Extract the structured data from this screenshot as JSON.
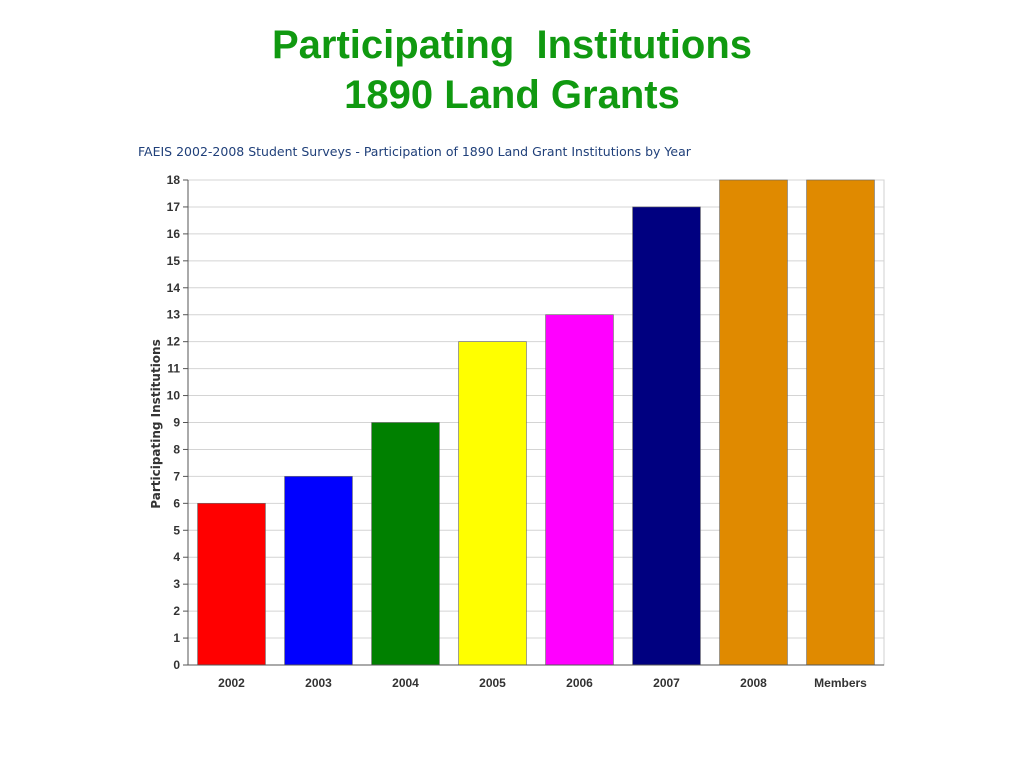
{
  "slide": {
    "title_line1": "Participating  Institutions",
    "title_line2": "1890 Land Grants"
  },
  "chart_data": {
    "type": "bar",
    "title": "FAEIS 2002-2008 Student Surveys - Participation of 1890 Land Grant Institutions by Year",
    "xlabel": "",
    "ylabel": "Participating Institutions",
    "categories": [
      "2002",
      "2003",
      "2004",
      "2005",
      "2006",
      "2007",
      "2008",
      "Members"
    ],
    "values": [
      6,
      7,
      9,
      12,
      13,
      17,
      18,
      18
    ],
    "colors": [
      "#ff0000",
      "#0000ff",
      "#008000",
      "#ffff00",
      "#ff00ff",
      "#000080",
      "#e08a00",
      "#e08a00"
    ],
    "ylim": [
      0,
      18
    ],
    "yticks": [
      0,
      1,
      2,
      3,
      4,
      5,
      6,
      7,
      8,
      9,
      10,
      11,
      12,
      13,
      14,
      15,
      16,
      17,
      18
    ],
    "grid": true,
    "legend": "none"
  }
}
